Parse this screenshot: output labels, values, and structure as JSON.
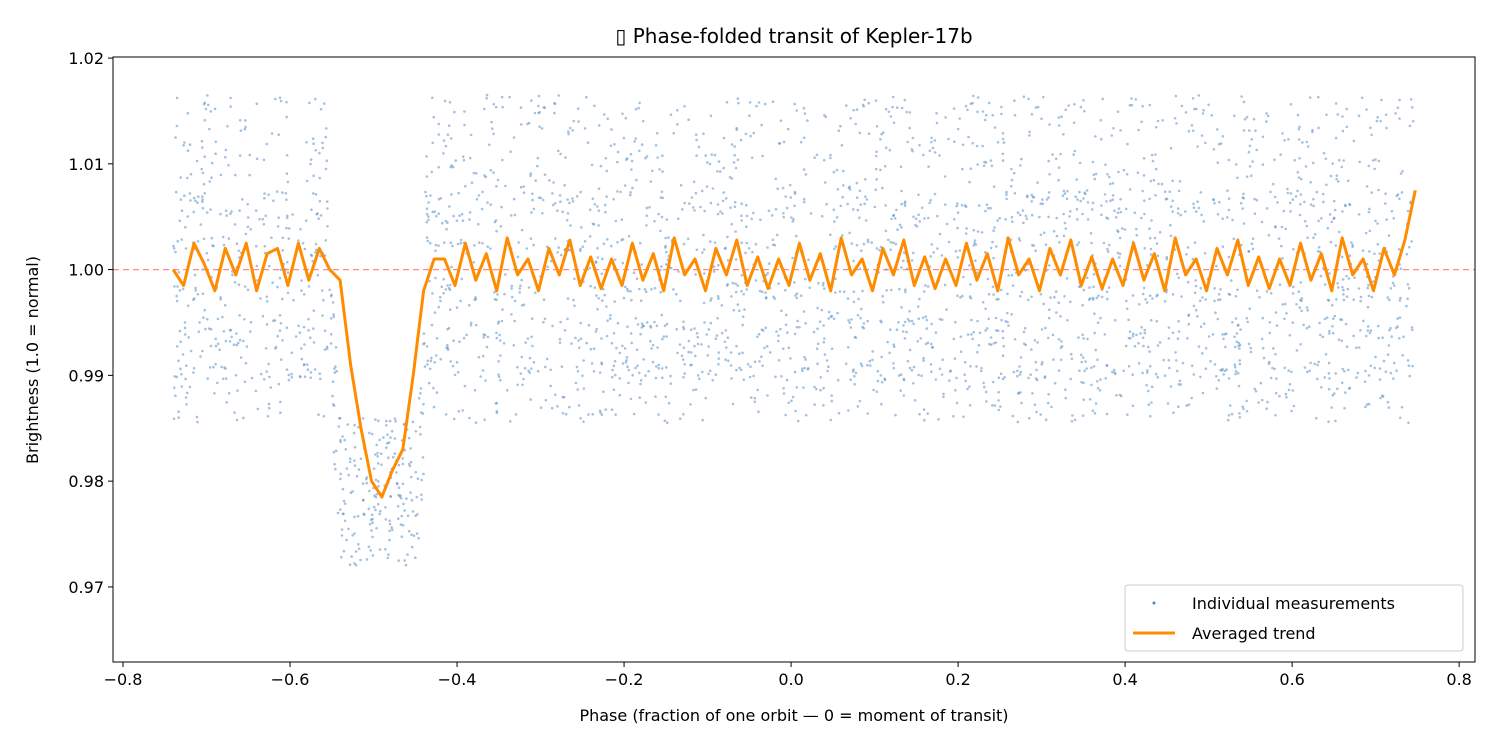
{
  "chart_data": {
    "type": "scatter",
    "title": "▯ Phase-folded transit of Kepler-17b",
    "xlabel": "Phase (fraction of one orbit — 0 = moment of transit)",
    "ylabel": "Brightness (1.0 = normal)",
    "xlim": [
      -0.812,
      0.819
    ],
    "ylim": [
      0.9629,
      1.0201
    ],
    "xticks": [
      "−0.8",
      "−0.6",
      "−0.4",
      "−0.2",
      "0.0",
      "0.2",
      "0.4",
      "0.6",
      "0.8"
    ],
    "xtick_values": [
      -0.8,
      -0.6,
      -0.4,
      -0.2,
      0,
      0.2,
      0.4,
      0.6,
      0.8
    ],
    "yticks": [
      "0.97",
      "0.98",
      "0.99",
      "1.00",
      "1.01",
      "1.02"
    ],
    "ytick_values": [
      0.97,
      0.98,
      0.99,
      1.0,
      1.01,
      1.02
    ],
    "grid": false,
    "legend_position": "bottom-right",
    "reference_line": {
      "y": 1.0,
      "color": "#ff6b6b",
      "style": "dashed"
    },
    "series": [
      {
        "name": "Individual measurements",
        "type": "scatter",
        "color": "#4a86c0",
        "x_range": [
          -0.74,
          0.745
        ],
        "y_range_out_of_transit": [
          0.985,
          1.0175
        ],
        "y_min_in_transit": 0.9655
      },
      {
        "name": "Averaged trend",
        "type": "line",
        "color": "#ff8c00",
        "x_start": -0.74,
        "x_step": 0.0125,
        "y": [
          1.0,
          0.9985,
          1.0025,
          1.0005,
          0.998,
          1.002,
          0.9995,
          1.0025,
          0.998,
          1.0015,
          1.002,
          0.9985,
          1.0025,
          0.999,
          1.002,
          1.0,
          0.999,
          0.991,
          0.985,
          0.98,
          0.9785,
          0.981,
          0.983,
          0.99,
          0.998,
          1.001,
          1.001,
          0.9985,
          1.0025,
          0.999,
          1.0015,
          0.998,
          1.003,
          0.9995,
          1.001,
          0.998,
          1.002,
          0.9995,
          1.0028,
          0.9985,
          1.0012,
          0.9982,
          1.001,
          0.9985,
          1.0025,
          0.999,
          1.0015,
          0.998,
          1.003,
          0.9995,
          1.001,
          0.998,
          1.002,
          0.9995,
          1.0028,
          0.9985,
          1.0012,
          0.9982,
          1.001,
          0.9985,
          1.0025,
          0.999,
          1.0015,
          0.998,
          1.003,
          0.9995,
          1.001,
          0.998,
          1.002,
          0.9995,
          1.0028,
          0.9985,
          1.0012,
          0.9982,
          1.001,
          0.9985,
          1.0025,
          0.999,
          1.0015,
          0.998,
          1.003,
          0.9995,
          1.001,
          0.998,
          1.002,
          0.9995,
          1.0028,
          0.9985,
          1.0012,
          0.9982,
          1.001,
          0.9985,
          1.0025,
          0.999,
          1.0015,
          0.998,
          1.003,
          0.9995,
          1.001,
          0.998,
          1.002,
          0.9995,
          1.0028,
          0.9985,
          1.0012,
          0.9982,
          1.001,
          0.9985,
          1.0025,
          0.999,
          1.0015,
          0.998,
          1.003,
          0.9995,
          1.001,
          0.998,
          1.002,
          0.9995,
          1.0028,
          1.0075
        ]
      }
    ]
  }
}
